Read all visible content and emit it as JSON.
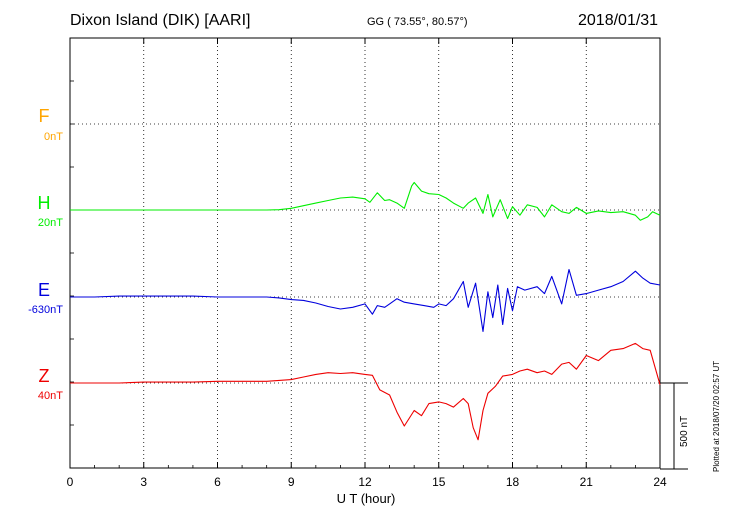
{
  "header": {
    "title": "Dixon Island (DIK)  [AARI]",
    "coords": "GG ( 73.55°,  80.57°)",
    "date": "2018/01/31"
  },
  "footer": {
    "plotted": "Plotted at 2018/07/20 02:57 UT",
    "scale_label": "500 nT"
  },
  "chart_data": {
    "type": "line",
    "title": "Dixon Island (DIK)  [AARI]",
    "xlabel": "U T (hour)",
    "ylabel": "",
    "xlim": [
      0,
      24
    ],
    "x_ticks": [
      0,
      3,
      6,
      9,
      12,
      15,
      18,
      21,
      24
    ],
    "x_tick_labels": [
      "0",
      "3",
      "6",
      "9",
      "12",
      "15",
      "18",
      "21",
      "24"
    ],
    "grid": true,
    "scale_bar_nT": 500,
    "series": [
      {
        "name": "F",
        "baseline_label": "0nT",
        "color": "#ffa500",
        "x": [],
        "y": []
      },
      {
        "name": "H",
        "baseline_label": "20nT",
        "color": "#00ee00",
        "x": [
          0,
          1,
          2,
          3,
          4,
          5,
          6,
          7,
          8,
          8.5,
          9,
          9.5,
          10,
          10.5,
          11,
          11.5,
          12,
          12.2,
          12.5,
          12.8,
          13,
          13.3,
          13.6,
          13.9,
          14,
          14.3,
          14.6,
          15,
          15.3,
          15.6,
          16,
          16.2,
          16.5,
          16.8,
          17,
          17.2,
          17.5,
          17.8,
          18,
          18.3,
          18.6,
          19,
          19.3,
          19.6,
          20,
          20.3,
          20.6,
          21,
          21.5,
          22,
          22.5,
          23,
          23.2,
          23.5,
          23.7,
          24
        ],
        "y": [
          0,
          0,
          0,
          0,
          0,
          0,
          0,
          0,
          0,
          2,
          10,
          25,
          40,
          55,
          70,
          75,
          65,
          45,
          100,
          55,
          60,
          40,
          10,
          140,
          160,
          110,
          95,
          90,
          70,
          40,
          10,
          40,
          70,
          -20,
          90,
          -40,
          60,
          -50,
          20,
          -30,
          30,
          15,
          -40,
          30,
          -10,
          -20,
          15,
          -20,
          -5,
          -15,
          -10,
          -30,
          -60,
          -40,
          -10,
          -30
        ]
      },
      {
        "name": "E",
        "baseline_label": "-630nT",
        "color": "#0000dd",
        "x": [
          0,
          1,
          2,
          3,
          4,
          5,
          6,
          7,
          8,
          8.5,
          9,
          9.5,
          10,
          10.5,
          11,
          11.5,
          12,
          12.3,
          12.5,
          12.8,
          13,
          13.3,
          13.6,
          14,
          14.4,
          14.8,
          15,
          15.3,
          15.6,
          16,
          16.2,
          16.5,
          16.8,
          17,
          17.2,
          17.4,
          17.6,
          17.8,
          18,
          18.2,
          18.5,
          19,
          19.3,
          19.6,
          20,
          20.3,
          20.6,
          21,
          21.5,
          22,
          22.5,
          23,
          23.3,
          23.6,
          24
        ],
        "y": [
          0,
          0,
          5,
          5,
          5,
          5,
          0,
          0,
          0,
          -5,
          -15,
          -20,
          -35,
          -55,
          -70,
          -60,
          -40,
          -100,
          -50,
          -60,
          -40,
          -10,
          -30,
          -40,
          -50,
          -60,
          -40,
          -50,
          -10,
          90,
          -60,
          80,
          -200,
          30,
          -120,
          70,
          -160,
          50,
          -80,
          60,
          40,
          60,
          20,
          120,
          -40,
          160,
          10,
          20,
          40,
          60,
          90,
          150,
          110,
          80,
          70
        ]
      },
      {
        "name": "Z",
        "baseline_label": "40nT",
        "color": "#ee0000",
        "x": [
          0,
          1,
          2,
          3,
          4,
          5,
          6,
          7,
          8,
          8.5,
          9,
          9.5,
          10,
          10.5,
          11,
          11.5,
          12,
          12.3,
          12.6,
          13,
          13.3,
          13.6,
          14,
          14.3,
          14.6,
          15,
          15.3,
          15.6,
          16,
          16.2,
          16.4,
          16.6,
          16.8,
          17,
          17.3,
          17.6,
          18,
          18.3,
          18.6,
          19,
          19.3,
          19.6,
          20,
          20.3,
          20.6,
          21,
          21.5,
          22,
          22.5,
          23,
          23.3,
          23.6,
          24
        ],
        "y": [
          0,
          0,
          0,
          5,
          5,
          5,
          10,
          10,
          10,
          15,
          20,
          35,
          50,
          60,
          55,
          60,
          50,
          45,
          -40,
          -70,
          -170,
          -250,
          -160,
          -190,
          -120,
          -110,
          -120,
          -140,
          -90,
          -120,
          -260,
          -330,
          -160,
          -60,
          -20,
          40,
          50,
          70,
          80,
          60,
          70,
          50,
          110,
          120,
          80,
          160,
          130,
          190,
          200,
          230,
          200,
          190,
          -10
        ]
      }
    ]
  }
}
